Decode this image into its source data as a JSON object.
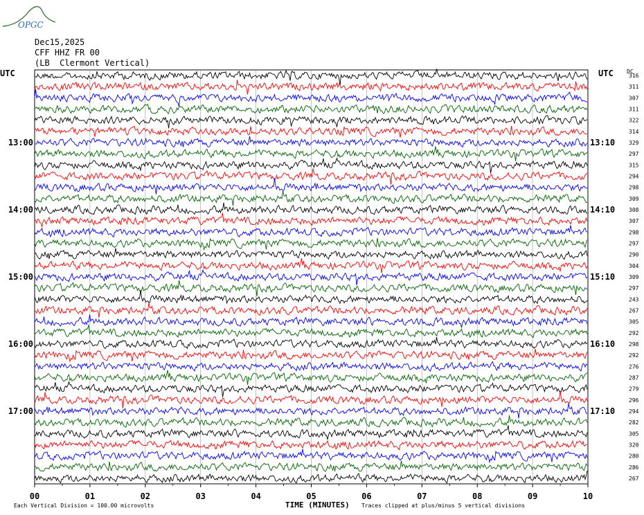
{
  "header": {
    "date": "Dec15,2025",
    "station": "CFF HHZ FR 00",
    "location": "(LB  Clermont Vertical)"
  },
  "logo": {
    "text": "OPGC",
    "color": "#3a7a3a"
  },
  "chart_data": {
    "type": "line",
    "title": "",
    "xlabel": "TIME (MINUTES)",
    "ylabel": "",
    "xlim": [
      0,
      10
    ],
    "x_ticks": [
      "00",
      "01",
      "02",
      "03",
      "04",
      "05",
      "06",
      "07",
      "08",
      "09",
      "10"
    ],
    "left_axis_label": "UTC",
    "right_axis_label": "UTC",
    "dc_label": "DC",
    "left_time_labels": [
      {
        "row": 6,
        "label": "13:00"
      },
      {
        "row": 12,
        "label": "14:00"
      },
      {
        "row": 18,
        "label": "15:00"
      },
      {
        "row": 24,
        "label": "16:00"
      },
      {
        "row": 30,
        "label": "17:00"
      }
    ],
    "right_time_labels": [
      {
        "row": 6,
        "label": "13:10"
      },
      {
        "row": 12,
        "label": "14:10"
      },
      {
        "row": 18,
        "label": "15:10"
      },
      {
        "row": 24,
        "label": "16:10"
      },
      {
        "row": 30,
        "label": "17:10"
      }
    ],
    "trace_colors": [
      "#000000",
      "#ff0000",
      "#0000ff",
      "#006400"
    ],
    "dc_offsets": [
      "316",
      "311",
      "307",
      "311",
      "322",
      "314",
      "329",
      "297",
      "315",
      "294",
      "298",
      "309",
      "308",
      "307",
      "298",
      "297",
      "290",
      "304",
      "309",
      "297",
      "243",
      "267",
      "305",
      "292",
      "298",
      "292",
      "276",
      "287",
      "279",
      "296",
      "294",
      "282",
      "305",
      "320",
      "280",
      "286",
      "267"
    ],
    "footer_left": "Each Vertical Division =  100.00 microvolts",
    "footer_right": "Traces clipped at plus/minus 5 vertical divisions"
  }
}
